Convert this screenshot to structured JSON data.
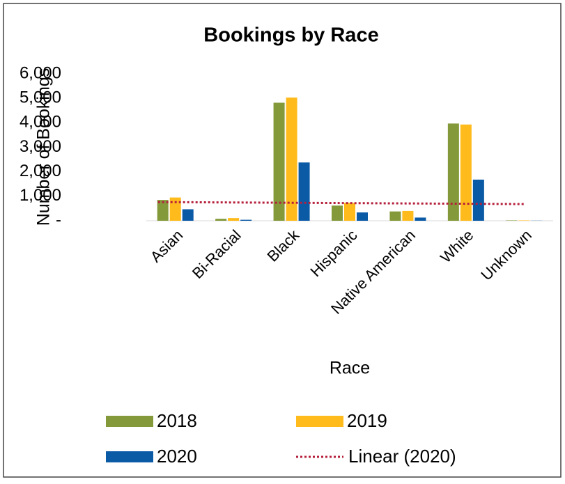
{
  "chart_data": {
    "type": "bar",
    "title": "Bookings by Race",
    "x_label": "Race",
    "y_label": "Number of Bookings",
    "categories": [
      "Asian",
      "Bi-Racial",
      "Black",
      "Hispanic",
      "Native American",
      "White",
      "Unknown"
    ],
    "series": [
      {
        "name": "2018",
        "color": "#84993a",
        "values": [
          850,
          80,
          4820,
          620,
          380,
          3970,
          15
        ]
      },
      {
        "name": "2019",
        "color": "#ffbb1c",
        "values": [
          950,
          110,
          5030,
          730,
          400,
          3930,
          15
        ]
      },
      {
        "name": "2020",
        "color": "#0b5aa6",
        "values": [
          470,
          40,
          2380,
          340,
          130,
          1680,
          5
        ]
      }
    ],
    "trendline": {
      "name": "Linear (2020)",
      "series": 2,
      "color": "#b5203c"
    },
    "ylim": [
      0,
      6000
    ],
    "yticks": [
      {
        "value": 0,
        "label": "-"
      },
      {
        "value": 1000,
        "label": "1,000"
      },
      {
        "value": 2000,
        "label": "2,000"
      },
      {
        "value": 3000,
        "label": "3,000"
      },
      {
        "value": 4000,
        "label": "4,000"
      },
      {
        "value": 5000,
        "label": "5,000"
      },
      {
        "value": 6000,
        "label": "6,000"
      }
    ]
  }
}
